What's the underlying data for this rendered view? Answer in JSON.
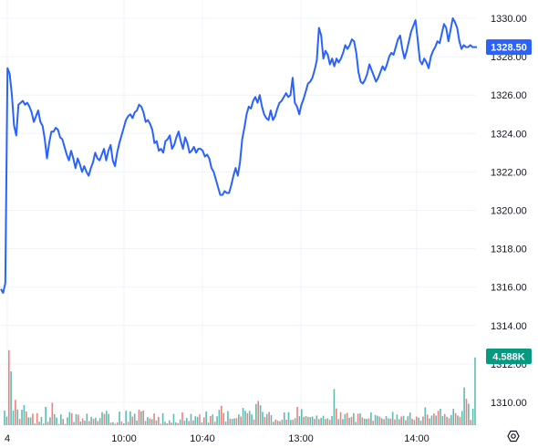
{
  "chart_data": {
    "type": "line",
    "title": "",
    "xlabel": "",
    "ylabel": "",
    "ylim": [
      1308.8,
      1330.6
    ],
    "y_ticks": [
      "1330.00",
      "1328.00",
      "1326.00",
      "1324.00",
      "1322.00",
      "1320.00",
      "1318.00",
      "1316.00",
      "1314.00",
      "1312.00",
      "1310.00"
    ],
    "x_ticks": [
      "4",
      "10:00",
      "10:40",
      "13:00",
      "14:00"
    ],
    "grid": true,
    "colors": {
      "line": "#2962ff",
      "price_badge": "#2962ff",
      "volume_badge": "#089981",
      "vol_up": "#26a69a",
      "vol_down": "#ef5350"
    },
    "last_price_label": "1328.50",
    "last_price": 1328.5,
    "last_volume_label": "4.588K",
    "series": [
      {
        "values": [
          1315.9,
          1315.7,
          1316.2,
          1327.4,
          1327.1,
          1326.0,
          1324.4,
          1323.9,
          1325.5,
          1325.6,
          1325.7,
          1325.5,
          1325.6,
          1325.4,
          1325.1,
          1324.6,
          1324.9,
          1325.2,
          1324.6,
          1324.4,
          1323.7,
          1322.7,
          1323.5,
          1324.1,
          1324.1,
          1324.3,
          1324.2,
          1323.8,
          1323.7,
          1323.3,
          1322.9,
          1322.6,
          1323.1,
          1322.7,
          1322.2,
          1322.7,
          1322.4,
          1322.0,
          1322.3,
          1322.0,
          1321.8,
          1322.2,
          1322.5,
          1323.0,
          1322.7,
          1322.6,
          1322.9,
          1323.2,
          1322.6,
          1323.1,
          1323.4,
          1322.6,
          1322.3,
          1323.0,
          1323.5,
          1323.9,
          1324.3,
          1324.7,
          1324.9,
          1325.0,
          1324.8,
          1325.1,
          1325.2,
          1325.5,
          1325.4,
          1325.1,
          1324.6,
          1324.7,
          1324.5,
          1324.2,
          1323.5,
          1323.6,
          1323.1,
          1323.2,
          1323.0,
          1323.6,
          1323.7,
          1323.9,
          1323.2,
          1323.4,
          1323.8,
          1324.1,
          1323.6,
          1323.2,
          1323.8,
          1323.5,
          1323.0,
          1323.1,
          1323.3,
          1323.0,
          1323.2,
          1323.2,
          1323.1,
          1322.8,
          1322.9,
          1322.7,
          1322.2,
          1322.0,
          1321.6,
          1321.2,
          1320.8,
          1320.8,
          1321.0,
          1320.9,
          1320.9,
          1321.3,
          1321.8,
          1322.2,
          1321.8,
          1322.5,
          1323.7,
          1324.3,
          1325.0,
          1325.4,
          1325.3,
          1325.7,
          1325.9,
          1325.6,
          1326.0,
          1325.4,
          1325.0,
          1324.8,
          1324.7,
          1325.2,
          1324.7,
          1324.9,
          1325.3,
          1325.6,
          1325.7,
          1325.9,
          1326.1,
          1325.9,
          1326.0,
          1326.9,
          1325.6,
          1325.4,
          1325.0,
          1325.5,
          1325.8,
          1326.2,
          1326.6,
          1326.7,
          1326.9,
          1327.3,
          1327.8,
          1329.5,
          1329.1,
          1327.9,
          1328.3,
          1328.1,
          1327.6,
          1327.9,
          1327.5,
          1327.9,
          1327.7,
          1327.9,
          1328.2,
          1328.6,
          1328.4,
          1328.6,
          1328.9,
          1328.8,
          1328.2,
          1327.2,
          1326.7,
          1326.6,
          1326.8,
          1327.1,
          1327.6,
          1327.3,
          1327.0,
          1326.7,
          1326.9,
          1327.2,
          1327.5,
          1327.3,
          1327.6,
          1328.0,
          1328.2,
          1328.1,
          1328.5,
          1328.9,
          1329.1,
          1328.4,
          1327.9,
          1328.3,
          1328.8,
          1329.3,
          1329.6,
          1329.9,
          1328.9,
          1327.8,
          1327.6,
          1327.9,
          1327.7,
          1327.4,
          1328.0,
          1328.3,
          1328.5,
          1328.8,
          1328.7,
          1329.2,
          1329.7,
          1329.5,
          1328.8,
          1329.4,
          1330.0,
          1329.8,
          1329.5,
          1328.8,
          1328.4,
          1328.6,
          1328.5,
          1328.5,
          1328.6,
          1328.5,
          1328.5,
          1328.5
        ]
      }
    ],
    "volume_axis": [
      0,
      3.07
    ],
    "volume": [
      0.56,
      0.33,
      2.87,
      2.06,
      0.56,
      0.97,
      0.6,
      0.24,
      0.59,
      0.77,
      0.52,
      0.3,
      0.3,
      0.44,
      0.06,
      0.46,
      0.13,
      0.32,
      0.06,
      0.7,
      0.13,
      0.3,
      0.86,
      0.42,
      0.29,
      0.05,
      0.41,
      0.24,
      0.05,
      0.3,
      0.5,
      0.46,
      0.12,
      0.42,
      0.4,
      0.14,
      0.26,
      0.17,
      0.44,
      0.16,
      0.32,
      0.24,
      0.29,
      0.16,
      0.27,
      0.5,
      0.43,
      0.55,
      0.43,
      0.1,
      0.11,
      0.05,
      0.11,
      0.52,
      0.14,
      0.07,
      0.55,
      0.13,
      0.53,
      0.33,
      0.44,
      0.18,
      0.59,
      0.53,
      0.56,
      0.16,
      0.31,
      0.26,
      0.23,
      0.45,
      0.18,
      0.32,
      0.05,
      0.46,
      0.13,
      0.07,
      0.19,
      0.1,
      0.43,
      0.11,
      0.08,
      0.22,
      0.49,
      0.17,
      0.28,
      0.16,
      0.43,
      0.18,
      0.34,
      0.32,
      0.41,
      0.11,
      0.3,
      0.53,
      0.1,
      0.35,
      0.41,
      0.13,
      0.34,
      0.59,
      0.74,
      0.47,
      0.14,
      0.54,
      0.25,
      0.24,
      0.26,
      0.27,
      0.41,
      0.33,
      0.66,
      0.55,
      0.46,
      0.55,
      0.41,
      0.22,
      0.81,
      0.93,
      0.76,
      0.51,
      0.31,
      0.43,
      0.51,
      0.38,
      0.13,
      0.21,
      0.17,
      0.15,
      0.21,
      0.49,
      0.21,
      0.5,
      0.2,
      0.21,
      0.27,
      0.7,
      0.35,
      0.61,
      0.32,
      0.35,
      0.32,
      0.31,
      0.33,
      0.24,
      0.37,
      0.23,
      0.28,
      0.36,
      0.24,
      0.26,
      0.2,
      0.35,
      1.38,
      0.64,
      0.23,
      0.5,
      0.23,
      0.43,
      0.47,
      0.28,
      0.32,
      0.46,
      0.12,
      0.44,
      0.45,
      0.3,
      0.25,
      0.24,
      0.26,
      0.49,
      0.17,
      0.39,
      0.36,
      0.33,
      0.26,
      0.23,
      0.35,
      0.26,
      0.25,
      0.51,
      0.22,
      0.41,
      0.23,
      0.33,
      0.36,
      0.19,
      0.34,
      0.48,
      0.24,
      0.2,
      0.33,
      0.29,
      0.18,
      0.33,
      0.68,
      0.41,
      0.26,
      0.37,
      0.45,
      0.37,
      0.55,
      0.63,
      0.35,
      0.43,
      0.32,
      0.27,
      0.39,
      0.63,
      0.46,
      0.37,
      0.32,
      0.54,
      1.44,
      1.01,
      0.82,
      0.2,
      0.63,
      2.59
    ],
    "volume_dir": [
      "up",
      "up",
      "down",
      "up",
      "up",
      "down",
      "up",
      "down",
      "up",
      "up",
      "down",
      "up",
      "up",
      "down",
      "up",
      "down",
      "up",
      "up",
      "down",
      "up",
      "down",
      "up",
      "down",
      "up",
      "up",
      "down",
      "up",
      "down",
      "down",
      "up",
      "up",
      "down",
      "up",
      "up",
      "down",
      "up",
      "down",
      "up",
      "up",
      "down",
      "up",
      "down",
      "up",
      "down",
      "up",
      "up",
      "down",
      "up",
      "up",
      "down",
      "up",
      "up",
      "down",
      "up",
      "down",
      "up",
      "up",
      "down",
      "up",
      "down",
      "up",
      "up",
      "down",
      "up",
      "down",
      "up",
      "up",
      "down",
      "up",
      "down",
      "up",
      "down",
      "down",
      "up",
      "up",
      "down",
      "up",
      "down",
      "up",
      "up",
      "down",
      "up",
      "down",
      "up",
      "up",
      "down",
      "up",
      "down",
      "up",
      "up",
      "down",
      "up",
      "down",
      "up",
      "up",
      "down",
      "up",
      "down",
      "up",
      "up",
      "down",
      "down",
      "up",
      "up",
      "down",
      "up",
      "up",
      "down",
      "up",
      "down",
      "up",
      "up",
      "down",
      "up",
      "up",
      "down",
      "up",
      "down",
      "up",
      "up",
      "down",
      "up",
      "down",
      "up",
      "up",
      "down",
      "up",
      "down",
      "up",
      "up",
      "down",
      "up",
      "up",
      "down",
      "up",
      "down",
      "up",
      "up",
      "down",
      "up",
      "down",
      "up",
      "up",
      "down",
      "up",
      "down",
      "up",
      "up",
      "down",
      "up",
      "down",
      "up",
      "up",
      "down",
      "up",
      "down",
      "up",
      "up",
      "down",
      "up",
      "down",
      "up",
      "up",
      "down",
      "up",
      "down",
      "up",
      "up",
      "down",
      "up",
      "down",
      "up",
      "up",
      "down",
      "up",
      "down",
      "up",
      "up",
      "down",
      "up",
      "down",
      "up",
      "up",
      "down",
      "up",
      "down",
      "up",
      "up",
      "down",
      "up",
      "down",
      "up",
      "up",
      "down",
      "up",
      "down",
      "up",
      "up",
      "down",
      "up",
      "down",
      "up",
      "up",
      "down",
      "up",
      "down",
      "up",
      "up",
      "down",
      "up",
      "down",
      "up",
      "up",
      "down",
      "up",
      "down",
      "up",
      "up",
      "up",
      "up"
    ]
  }
}
